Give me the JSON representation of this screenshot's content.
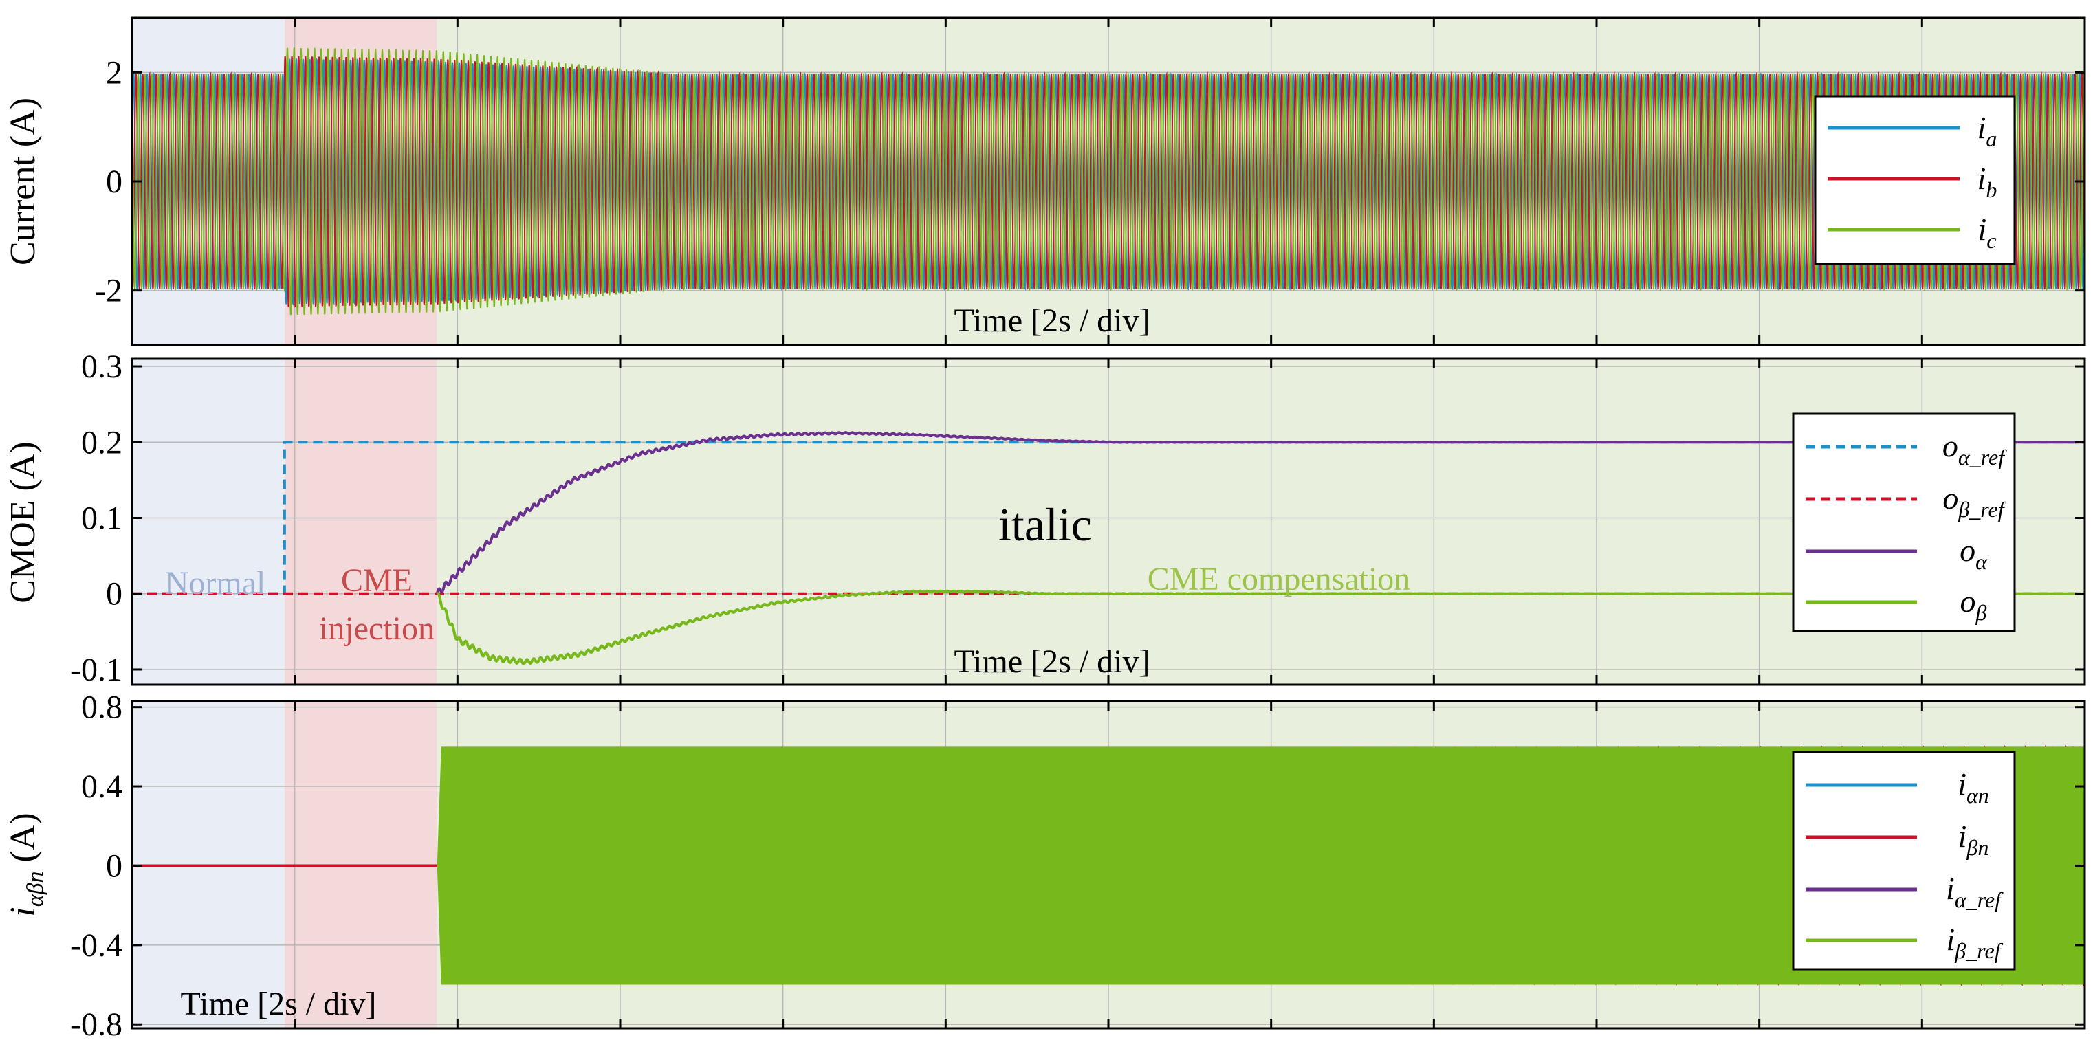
{
  "colors": {
    "blue": "#1f8fc8",
    "red": "#cc1128",
    "purple": "#6b2f8f",
    "green": "#77b81b",
    "normal_shade": "#e9edf6",
    "injection_shade": "#f3d9d9",
    "compensation_shade": "#e8efdc",
    "grid": "#b9b9b9"
  },
  "chart_data": [
    {
      "type": "line",
      "ylabel": "Current (A)",
      "xlabel": "Time [2s / div]",
      "xlim": [
        0,
        28.8
      ],
      "ylim": [
        -3,
        3
      ],
      "yticks": [
        {
          "v": 2,
          "label": "2"
        },
        {
          "v": 0,
          "label": "0"
        },
        {
          "v": -2,
          "label": "-2"
        }
      ],
      "grid": true,
      "legend_position": "right",
      "series": [
        {
          "name_main": "i",
          "name_sub": "a",
          "color": "blue",
          "style": "solid",
          "kind": "sine3",
          "phase_deg": 0,
          "amplitude": [
            [
              0,
              1.97
            ],
            [
              2.25,
              1.97
            ],
            [
              2.25,
              2.25
            ],
            [
              4.5,
              2.2
            ],
            [
              8,
              1.97
            ],
            [
              28.8,
              1.97
            ]
          ]
        },
        {
          "name_main": "i",
          "name_sub": "b",
          "color": "red",
          "style": "solid",
          "kind": "sine3",
          "phase_deg": -120,
          "amplitude": [
            [
              0,
              1.97
            ],
            [
              2.25,
              1.97
            ],
            [
              2.25,
              2.3
            ],
            [
              4.5,
              2.25
            ],
            [
              8,
              1.97
            ],
            [
              28.8,
              1.97
            ]
          ]
        },
        {
          "name_main": "i",
          "name_sub": "c",
          "color": "green",
          "style": "solid",
          "kind": "sine3",
          "phase_deg": 120,
          "amplitude": [
            [
              0,
              1.97
            ],
            [
              2.25,
              1.97
            ],
            [
              2.25,
              2.45
            ],
            [
              4.5,
              2.4
            ],
            [
              8,
              1.97
            ],
            [
              28.8,
              1.97
            ]
          ]
        }
      ]
    },
    {
      "type": "line",
      "ylabel": "CMOE (A)",
      "xlabel": "Time [2s / div]",
      "xlim": [
        0,
        28.8
      ],
      "ylim": [
        -0.12,
        0.31
      ],
      "yticks": [
        {
          "v": 0.3,
          "label": "0.3"
        },
        {
          "v": 0.2,
          "label": "0.2"
        },
        {
          "v": 0.1,
          "label": "0.1"
        },
        {
          "v": 0,
          "label": "0"
        },
        {
          "v": -0.1,
          "label": "-0.1"
        }
      ],
      "grid": true,
      "legend_position": "right",
      "series": [
        {
          "name_main": "o",
          "name_sub": "α_ref",
          "color": "blue",
          "style": "dashed",
          "points": [
            [
              0,
              0
            ],
            [
              2.25,
              0
            ],
            [
              2.25,
              0.2
            ],
            [
              4.5,
              0.2
            ],
            [
              28.8,
              0.2
            ]
          ]
        },
        {
          "name_main": "o",
          "name_sub": "β_ref",
          "color": "red",
          "style": "dashed",
          "points": [
            [
              0,
              0
            ],
            [
              28.8,
              0
            ]
          ]
        },
        {
          "name_main": "o",
          "name_sub": "α",
          "color": "purple",
          "style": "solid",
          "ripple": 0.004,
          "points": [
            [
              4.5,
              0
            ],
            [
              5.5,
              0.09
            ],
            [
              6.5,
              0.15
            ],
            [
              7.5,
              0.185
            ],
            [
              8.5,
              0.203
            ],
            [
              9.5,
              0.21
            ],
            [
              10.5,
              0.212
            ],
            [
              11.5,
              0.21
            ],
            [
              12.5,
              0.206
            ],
            [
              13.5,
              0.202
            ],
            [
              14.5,
              0.2
            ],
            [
              28.8,
              0.2
            ]
          ]
        },
        {
          "name_main": "o",
          "name_sub": "β",
          "color": "green",
          "style": "solid",
          "ripple": 0.004,
          "points": [
            [
              4.5,
              0
            ],
            [
              4.8,
              -0.06
            ],
            [
              5.3,
              -0.085
            ],
            [
              5.8,
              -0.09
            ],
            [
              6.6,
              -0.08
            ],
            [
              7.5,
              -0.055
            ],
            [
              8.5,
              -0.03
            ],
            [
              9.5,
              -0.012
            ],
            [
              10.5,
              -0.002
            ],
            [
              11.5,
              0.003
            ],
            [
              12.5,
              0.003
            ],
            [
              13.5,
              0
            ],
            [
              28.8,
              0
            ]
          ]
        }
      ]
    },
    {
      "type": "line",
      "ylabel_main": "i",
      "ylabel_sub": "αβn",
      "ylabel_unit": " (A)",
      "xlabel": "Time [2s / div]",
      "xlim": [
        0,
        28.8
      ],
      "ylim": [
        -0.82,
        0.83
      ],
      "yticks": [
        {
          "v": 0.8,
          "label": "0.8"
        },
        {
          "v": 0.4,
          "label": "0.4"
        },
        {
          "v": 0,
          "label": "0"
        },
        {
          "v": -0.4,
          "label": "-0.4"
        },
        {
          "v": -0.8,
          "label": "-0.8"
        }
      ],
      "grid": true,
      "legend_position": "right",
      "series": [
        {
          "name_main": "i",
          "name_sub": "αn",
          "color": "blue",
          "style": "solid"
        },
        {
          "name_main": "i",
          "name_sub": "βn",
          "color": "red",
          "style": "solid",
          "kind": "sine2",
          "amplitude": [
            [
              0,
              0
            ],
            [
              4.5,
              0
            ],
            [
              6.5,
              0.3
            ],
            [
              8.5,
              0.45
            ],
            [
              10.5,
              0.53
            ],
            [
              12.5,
              0.57
            ],
            [
              15,
              0.59
            ],
            [
              28.8,
              0.6
            ]
          ]
        },
        {
          "name_main": "i",
          "name_sub": "α_ref",
          "color": "purple",
          "style": "solid"
        },
        {
          "name_main": "i",
          "name_sub": "β_ref",
          "color": "green",
          "style": "solid",
          "kind": "envelope",
          "amplitude": [
            [
              0,
              0
            ],
            [
              4.5,
              0
            ],
            [
              4.5,
              0.6
            ],
            [
              28.8,
              0.6
            ]
          ]
        }
      ]
    }
  ],
  "regions": [
    {
      "label": "Normal",
      "from": 0,
      "to": 2.25,
      "color": "normal_shade"
    },
    {
      "label": "CME injection",
      "from": 2.25,
      "to": 4.5,
      "color": "injection_shade"
    },
    {
      "label": "CME compensation",
      "from": 4.5,
      "to": 28.8,
      "color": "compensation_shade"
    }
  ],
  "annotations": {
    "normal": "Normal",
    "cme": "CME",
    "injection": "injection",
    "compensation": "CME compensation",
    "italic_note": "italic"
  }
}
